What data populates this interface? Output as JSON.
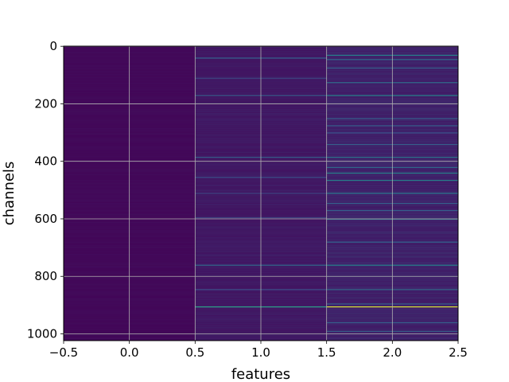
{
  "chart_data": {
    "type": "heatmap",
    "xlabel": "features",
    "ylabel": "channels",
    "columns": [
      0,
      1,
      2
    ],
    "rows": 1024,
    "xlim": [
      -0.5,
      2.5
    ],
    "ylim": [
      1023.5,
      -0.5
    ],
    "y_inverted": true,
    "x_ticks": [
      "−0.5",
      "0.0",
      "0.5",
      "1.0",
      "1.5",
      "2.0",
      "2.5"
    ],
    "x_tick_values": [
      -0.5,
      0.0,
      0.5,
      1.0,
      1.5,
      2.0,
      2.5
    ],
    "y_ticks": [
      "0",
      "200",
      "400",
      "600",
      "800",
      "1000"
    ],
    "y_tick_values": [
      0,
      200,
      400,
      600,
      800,
      1000
    ],
    "grid": true,
    "colormap": "viridis",
    "value_range": [
      0,
      1
    ],
    "background_values": [
      0.02,
      0.06,
      0.08
    ],
    "highlights": [
      {
        "column": 1,
        "channel": 40,
        "value": 0.3
      },
      {
        "column": 1,
        "channel": 110,
        "value": 0.2
      },
      {
        "column": 1,
        "channel": 170,
        "value": 0.3
      },
      {
        "column": 1,
        "channel": 385,
        "value": 0.3
      },
      {
        "column": 1,
        "channel": 455,
        "value": 0.25
      },
      {
        "column": 1,
        "channel": 510,
        "value": 0.2
      },
      {
        "column": 1,
        "channel": 595,
        "value": 0.2
      },
      {
        "column": 1,
        "channel": 760,
        "value": 0.35
      },
      {
        "column": 1,
        "channel": 845,
        "value": 0.25
      },
      {
        "column": 1,
        "channel": 905,
        "value": 0.55
      },
      {
        "column": 2,
        "channel": 30,
        "value": 0.45
      },
      {
        "column": 2,
        "channel": 45,
        "value": 0.35
      },
      {
        "column": 2,
        "channel": 75,
        "value": 0.3
      },
      {
        "column": 2,
        "channel": 125,
        "value": 0.35
      },
      {
        "column": 2,
        "channel": 170,
        "value": 0.45
      },
      {
        "column": 2,
        "channel": 250,
        "value": 0.3
      },
      {
        "column": 2,
        "channel": 275,
        "value": 0.3
      },
      {
        "column": 2,
        "channel": 300,
        "value": 0.25
      },
      {
        "column": 2,
        "channel": 340,
        "value": 0.3
      },
      {
        "column": 2,
        "channel": 385,
        "value": 0.4
      },
      {
        "column": 2,
        "channel": 420,
        "value": 0.35
      },
      {
        "column": 2,
        "channel": 440,
        "value": 0.45
      },
      {
        "column": 2,
        "channel": 465,
        "value": 0.45
      },
      {
        "column": 2,
        "channel": 510,
        "value": 0.4
      },
      {
        "column": 2,
        "channel": 545,
        "value": 0.3
      },
      {
        "column": 2,
        "channel": 570,
        "value": 0.3
      },
      {
        "column": 2,
        "channel": 600,
        "value": 0.4
      },
      {
        "column": 2,
        "channel": 680,
        "value": 0.3
      },
      {
        "column": 2,
        "channel": 760,
        "value": 0.45
      },
      {
        "column": 2,
        "channel": 845,
        "value": 0.35
      },
      {
        "column": 2,
        "channel": 895,
        "value": 0.3
      },
      {
        "column": 2,
        "channel": 905,
        "value": 0.95
      },
      {
        "column": 2,
        "channel": 960,
        "value": 0.3
      },
      {
        "column": 2,
        "channel": 990,
        "value": 0.3
      }
    ]
  }
}
